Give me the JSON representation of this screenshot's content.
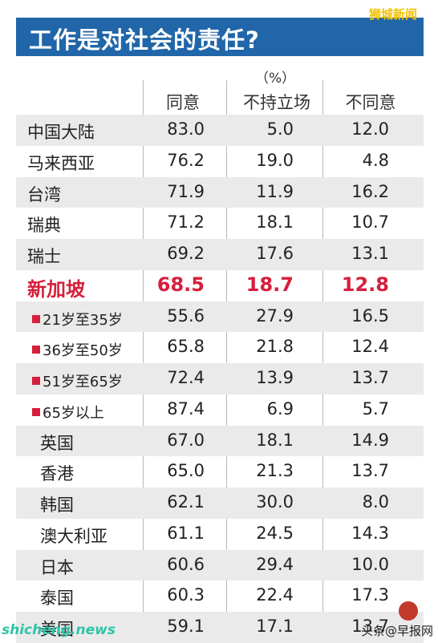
{
  "title": "工作是对社会的责任?",
  "source_tag": "狮城新闻",
  "watermark": "shicheng.news",
  "source_bottom": "头条@早报网",
  "chart_data": {
    "type": "table",
    "unit": "（%）",
    "columns": [
      "同意",
      "不持立场",
      "不同意"
    ],
    "rows": [
      {
        "name": "中国大陆",
        "values": [
          "83.0",
          "5.0",
          "12.0"
        ],
        "style": "normal"
      },
      {
        "name": "马来西亚",
        "values": [
          "76.2",
          "19.0",
          "4.8"
        ],
        "style": "normal"
      },
      {
        "name": "台湾",
        "values": [
          "71.9",
          "11.9",
          "16.2"
        ],
        "style": "normal"
      },
      {
        "name": "瑞典",
        "values": [
          "71.2",
          "18.1",
          "10.7"
        ],
        "style": "normal"
      },
      {
        "name": "瑞士",
        "values": [
          "69.2",
          "17.6",
          "13.1"
        ],
        "style": "normal"
      },
      {
        "name": "新加坡",
        "values": [
          "68.5",
          "18.7",
          "12.8"
        ],
        "style": "highlight"
      },
      {
        "name": "21岁至35岁",
        "values": [
          "55.6",
          "27.9",
          "16.5"
        ],
        "style": "sub"
      },
      {
        "name": "36岁至50岁",
        "values": [
          "65.8",
          "21.8",
          "12.4"
        ],
        "style": "sub"
      },
      {
        "name": "51岁至65岁",
        "values": [
          "72.4",
          "13.9",
          "13.7"
        ],
        "style": "sub"
      },
      {
        "name": "65岁以上",
        "values": [
          "87.4",
          "6.9",
          "5.7"
        ],
        "style": "sub"
      },
      {
        "name": "英国",
        "values": [
          "67.0",
          "18.1",
          "14.9"
        ],
        "style": "indent"
      },
      {
        "name": "香港",
        "values": [
          "65.0",
          "21.3",
          "13.7"
        ],
        "style": "indent"
      },
      {
        "name": "韩国",
        "values": [
          "62.1",
          "30.0",
          "8.0"
        ],
        "style": "indent"
      },
      {
        "name": "澳大利亚",
        "values": [
          "61.1",
          "24.5",
          "14.3"
        ],
        "style": "indent"
      },
      {
        "name": "日本",
        "values": [
          "60.6",
          "29.4",
          "10.0"
        ],
        "style": "indent"
      },
      {
        "name": "泰国",
        "values": [
          "60.3",
          "22.4",
          "17.3"
        ],
        "style": "indent"
      },
      {
        "name": "美国",
        "values": [
          "59.1",
          "17.1",
          "13.7"
        ],
        "style": "indent"
      }
    ]
  },
  "colors": {
    "title_bg": "#2166a8",
    "highlight": "#d61f3c",
    "shade": "#eaeaea",
    "watermark": "#2ec4a8"
  }
}
